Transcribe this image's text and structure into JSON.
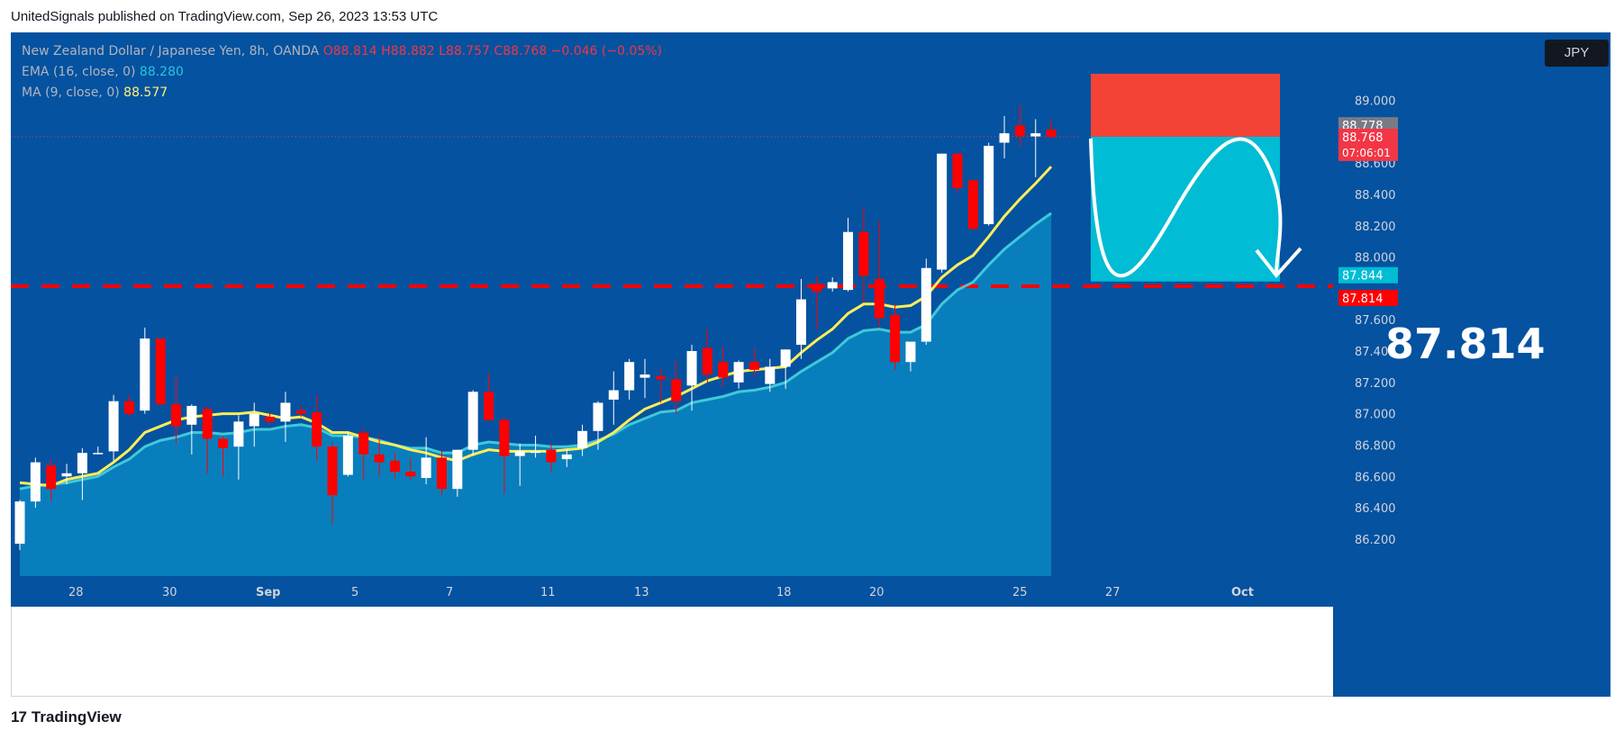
{
  "header": {
    "published_by": "UnitedSignals published on TradingView.com, Sep 26, 2023 13:53 UTC"
  },
  "legend": {
    "symbol": "New Zealand Dollar / Japanese Yen, 8h, OANDA",
    "open": "O88.814",
    "high": "H88.882",
    "low": "L88.757",
    "close": "C88.768",
    "change": "−0.046 (−0.05%)",
    "ema_label": "EMA (16, close, 0)",
    "ema_value": "88.280",
    "ma_label": "MA (9, close, 0)",
    "ma_value": "88.577"
  },
  "currency_button": "JPY",
  "annotation": {
    "big_price": "87.814"
  },
  "price_labels": {
    "last_gray": "88.778",
    "last_red": "88.768",
    "countdown": "07:06:01",
    "target_cyan": "87.844",
    "target_red": "87.814"
  },
  "footer": {
    "brand": "TradingView"
  },
  "colors": {
    "background": "#0452a0",
    "up_candle": "#ffffff",
    "down_candle": "#ff0000",
    "ema": "#26c6da",
    "ma": "#ffee58",
    "stop_zone": "#f44336",
    "target_zone": "#00bcd4",
    "level_line": "#ff0000"
  },
  "chart_data": {
    "type": "candlestick",
    "title": "New Zealand Dollar / Japanese Yen, 8h, OANDA",
    "ylim": [
      86.05,
      89.25
    ],
    "y_ticks": [
      86.2,
      86.4,
      86.6,
      86.8,
      87.0,
      87.2,
      87.4,
      87.6,
      88.0,
      88.2,
      88.4,
      88.6,
      89.0
    ],
    "y_tick_labels": [
      "86.200",
      "86.400",
      "86.600",
      "86.800",
      "87.000",
      "87.200",
      "87.400",
      "87.600",
      "88.000",
      "88.200",
      "88.400",
      "88.600",
      "89.000"
    ],
    "x_tick_labels": [
      "28",
      "30",
      "Sep",
      "5",
      "7",
      "11",
      "13",
      "18",
      "20",
      "25",
      "27",
      "Oct"
    ],
    "horizontal_level": 87.814,
    "trade_zones": {
      "stop_top": 89.17,
      "entry": 88.768,
      "target": 87.844
    },
    "candles": [
      {
        "o": 86.17,
        "h": 86.45,
        "l": 86.13,
        "c": 86.44
      },
      {
        "o": 86.44,
        "h": 86.72,
        "l": 86.4,
        "c": 86.69
      },
      {
        "o": 86.67,
        "h": 86.71,
        "l": 86.44,
        "c": 86.52
      },
      {
        "o": 86.6,
        "h": 86.68,
        "l": 86.55,
        "c": 86.62
      },
      {
        "o": 86.62,
        "h": 86.78,
        "l": 86.45,
        "c": 86.75
      },
      {
        "o": 86.75,
        "h": 86.79,
        "l": 86.74,
        "c": 86.75
      },
      {
        "o": 86.76,
        "h": 87.12,
        "l": 86.7,
        "c": 87.08
      },
      {
        "o": 87.08,
        "h": 87.12,
        "l": 86.98,
        "c": 87.0
      },
      {
        "o": 87.02,
        "h": 87.55,
        "l": 87.0,
        "c": 87.48
      },
      {
        "o": 87.48,
        "h": 87.48,
        "l": 87.05,
        "c": 87.06
      },
      {
        "o": 87.06,
        "h": 87.24,
        "l": 86.81,
        "c": 86.92
      },
      {
        "o": 86.93,
        "h": 87.06,
        "l": 86.74,
        "c": 87.05
      },
      {
        "o": 87.03,
        "h": 87.05,
        "l": 86.62,
        "c": 86.84
      },
      {
        "o": 86.84,
        "h": 86.86,
        "l": 86.6,
        "c": 86.78
      },
      {
        "o": 86.79,
        "h": 86.99,
        "l": 86.58,
        "c": 86.95
      },
      {
        "o": 86.92,
        "h": 87.07,
        "l": 86.79,
        "c": 87.0
      },
      {
        "o": 86.98,
        "h": 87.01,
        "l": 86.93,
        "c": 86.95
      },
      {
        "o": 86.95,
        "h": 87.14,
        "l": 86.82,
        "c": 87.07
      },
      {
        "o": 87.02,
        "h": 87.05,
        "l": 86.98,
        "c": 87.0
      },
      {
        "o": 87.01,
        "h": 87.12,
        "l": 86.7,
        "c": 86.79
      },
      {
        "o": 86.79,
        "h": 86.82,
        "l": 86.3,
        "c": 86.48
      },
      {
        "o": 86.61,
        "h": 86.88,
        "l": 86.6,
        "c": 86.86
      },
      {
        "o": 86.88,
        "h": 86.91,
        "l": 86.58,
        "c": 86.74
      },
      {
        "o": 86.74,
        "h": 86.86,
        "l": 86.6,
        "c": 86.69
      },
      {
        "o": 86.7,
        "h": 86.75,
        "l": 86.59,
        "c": 86.63
      },
      {
        "o": 86.63,
        "h": 86.72,
        "l": 86.58,
        "c": 86.6
      },
      {
        "o": 86.59,
        "h": 86.85,
        "l": 86.55,
        "c": 86.72
      },
      {
        "o": 86.72,
        "h": 86.77,
        "l": 86.48,
        "c": 86.52
      },
      {
        "o": 86.52,
        "h": 86.77,
        "l": 86.47,
        "c": 86.77
      },
      {
        "o": 86.77,
        "h": 87.15,
        "l": 86.73,
        "c": 87.14
      },
      {
        "o": 87.14,
        "h": 87.26,
        "l": 86.95,
        "c": 86.96
      },
      {
        "o": 86.96,
        "h": 86.98,
        "l": 86.49,
        "c": 86.73
      },
      {
        "o": 86.73,
        "h": 86.81,
        "l": 86.54,
        "c": 86.76
      },
      {
        "o": 86.75,
        "h": 86.86,
        "l": 86.72,
        "c": 86.76
      },
      {
        "o": 86.77,
        "h": 86.81,
        "l": 86.63,
        "c": 86.69
      },
      {
        "o": 86.71,
        "h": 86.77,
        "l": 86.66,
        "c": 86.74
      },
      {
        "o": 86.78,
        "h": 86.93,
        "l": 86.73,
        "c": 86.89
      },
      {
        "o": 86.89,
        "h": 87.08,
        "l": 86.77,
        "c": 87.07
      },
      {
        "o": 87.09,
        "h": 87.27,
        "l": 86.93,
        "c": 87.15
      },
      {
        "o": 87.15,
        "h": 87.35,
        "l": 87.09,
        "c": 87.33
      },
      {
        "o": 87.23,
        "h": 87.35,
        "l": 87.1,
        "c": 87.25
      },
      {
        "o": 87.24,
        "h": 87.29,
        "l": 87.07,
        "c": 87.22
      },
      {
        "o": 87.22,
        "h": 87.34,
        "l": 87.0,
        "c": 87.08
      },
      {
        "o": 87.18,
        "h": 87.44,
        "l": 87.02,
        "c": 87.4
      },
      {
        "o": 87.42,
        "h": 87.54,
        "l": 87.2,
        "c": 87.25
      },
      {
        "o": 87.33,
        "h": 87.43,
        "l": 87.17,
        "c": 87.23
      },
      {
        "o": 87.2,
        "h": 87.34,
        "l": 87.16,
        "c": 87.33
      },
      {
        "o": 87.33,
        "h": 87.42,
        "l": 87.24,
        "c": 87.28
      },
      {
        "o": 87.19,
        "h": 87.35,
        "l": 87.14,
        "c": 87.3
      },
      {
        "o": 87.3,
        "h": 87.41,
        "l": 87.16,
        "c": 87.41
      },
      {
        "o": 87.44,
        "h": 87.86,
        "l": 87.35,
        "c": 87.73
      },
      {
        "o": 87.83,
        "h": 87.88,
        "l": 87.54,
        "c": 87.78
      },
      {
        "o": 87.8,
        "h": 87.87,
        "l": 87.78,
        "c": 87.84
      },
      {
        "o": 87.79,
        "h": 88.25,
        "l": 87.78,
        "c": 88.16
      },
      {
        "o": 88.16,
        "h": 88.32,
        "l": 87.71,
        "c": 87.88
      },
      {
        "o": 87.86,
        "h": 88.23,
        "l": 87.55,
        "c": 87.61
      },
      {
        "o": 87.63,
        "h": 87.7,
        "l": 87.28,
        "c": 87.33
      },
      {
        "o": 87.33,
        "h": 87.45,
        "l": 87.27,
        "c": 87.46
      },
      {
        "o": 87.46,
        "h": 87.99,
        "l": 87.44,
        "c": 87.93
      },
      {
        "o": 87.92,
        "h": 88.66,
        "l": 87.9,
        "c": 88.66
      },
      {
        "o": 88.66,
        "h": 88.66,
        "l": 88.41,
        "c": 88.44
      },
      {
        "o": 88.49,
        "h": 88.49,
        "l": 88.17,
        "c": 88.18
      },
      {
        "o": 88.21,
        "h": 88.73,
        "l": 88.2,
        "c": 88.71
      },
      {
        "o": 88.73,
        "h": 88.9,
        "l": 88.63,
        "c": 88.79
      },
      {
        "o": 88.84,
        "h": 88.97,
        "l": 88.71,
        "c": 88.77
      },
      {
        "o": 88.77,
        "h": 88.88,
        "l": 88.51,
        "c": 88.79
      },
      {
        "o": 88.814,
        "h": 88.882,
        "l": 88.757,
        "c": 88.768
      }
    ],
    "ema": [
      86.52,
      86.54,
      86.55,
      86.56,
      86.58,
      86.6,
      86.66,
      86.71,
      86.79,
      86.83,
      86.85,
      86.88,
      86.88,
      86.87,
      86.88,
      86.9,
      86.9,
      86.92,
      86.93,
      86.91,
      86.86,
      86.86,
      86.85,
      86.83,
      86.8,
      86.78,
      86.78,
      86.75,
      86.75,
      86.8,
      86.82,
      86.81,
      86.8,
      86.8,
      86.79,
      86.79,
      86.8,
      86.83,
      86.87,
      86.93,
      86.97,
      87.01,
      87.02,
      87.07,
      87.09,
      87.11,
      87.14,
      87.15,
      87.17,
      87.2,
      87.27,
      87.33,
      87.39,
      87.48,
      87.53,
      87.54,
      87.52,
      87.52,
      87.57,
      87.7,
      87.79,
      87.84,
      87.95,
      88.05,
      88.13,
      88.21,
      88.28
    ],
    "ma": [
      86.56,
      86.55,
      86.54,
      86.58,
      86.6,
      86.62,
      86.69,
      86.77,
      86.88,
      86.92,
      86.96,
      86.98,
      86.99,
      87.0,
      87.0,
      87.01,
      86.99,
      86.97,
      86.98,
      86.94,
      86.88,
      86.88,
      86.85,
      86.82,
      86.8,
      86.77,
      86.75,
      86.72,
      86.7,
      86.74,
      86.77,
      86.76,
      86.76,
      86.76,
      86.76,
      86.77,
      86.78,
      86.82,
      86.88,
      86.96,
      87.03,
      87.07,
      87.11,
      87.16,
      87.21,
      87.24,
      87.27,
      87.28,
      87.29,
      87.3,
      87.39,
      87.47,
      87.54,
      87.64,
      87.7,
      87.7,
      87.68,
      87.69,
      87.75,
      87.87,
      87.95,
      88.01,
      88.13,
      88.26,
      88.37,
      88.47,
      88.577
    ]
  }
}
